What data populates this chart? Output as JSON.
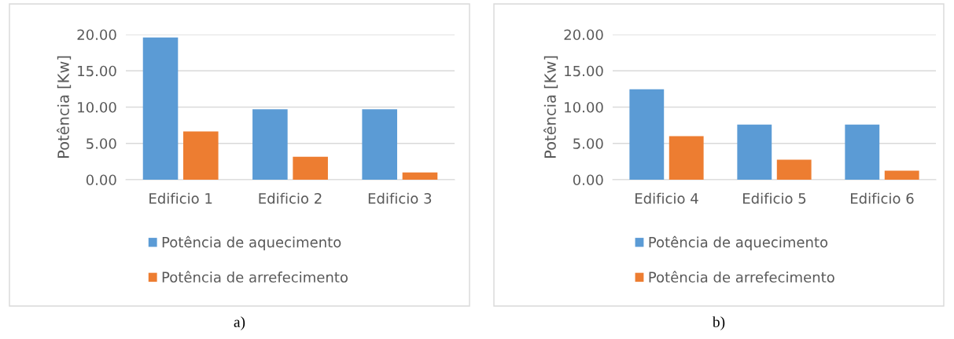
{
  "chart_data": [
    {
      "type": "bar",
      "categories": [
        "Edificio 1",
        "Edificio 2",
        "Edificio 3"
      ],
      "ylabel": "Potência [Kw]",
      "series": [
        {
          "name": "Potência de aquecimento",
          "color": "#5b9bd5",
          "values": [
            19.6,
            9.7,
            9.7
          ]
        },
        {
          "name": "Potência de arrefecimento",
          "color": "#ed7d31",
          "values": [
            6.65,
            3.15,
            1.0
          ]
        }
      ],
      "ylim": [
        0,
        20
      ],
      "yticks": [
        {
          "value": 0,
          "label": "0.00"
        },
        {
          "value": 5,
          "label": "5.00"
        },
        {
          "value": 10,
          "label": "10.00"
        },
        {
          "value": 15,
          "label": "15.00"
        },
        {
          "value": 20,
          "label": "20.00"
        }
      ],
      "grid": "y",
      "legend": "bottom",
      "annotations": [
        "a)"
      ]
    },
    {
      "type": "bar",
      "categories": [
        "Edificio 4",
        "Edificio 5",
        "Edificio 6"
      ],
      "ylabel": "Potência [Kw]",
      "series": [
        {
          "name": "Potência de aquecimento",
          "color": "#5b9bd5",
          "values": [
            12.45,
            7.6,
            7.6
          ]
        },
        {
          "name": "Potência de arrefecimento",
          "color": "#ed7d31",
          "values": [
            6.0,
            2.75,
            1.25
          ]
        }
      ],
      "ylim": [
        0,
        20
      ],
      "yticks": [
        {
          "value": 0,
          "label": "0.00"
        },
        {
          "value": 5,
          "label": "5.00"
        },
        {
          "value": 10,
          "label": "10.00"
        },
        {
          "value": 15,
          "label": "15.00"
        },
        {
          "value": 20,
          "label": "20.00"
        }
      ],
      "grid": "y",
      "legend": "bottom",
      "annotations": [
        "b)"
      ]
    }
  ]
}
